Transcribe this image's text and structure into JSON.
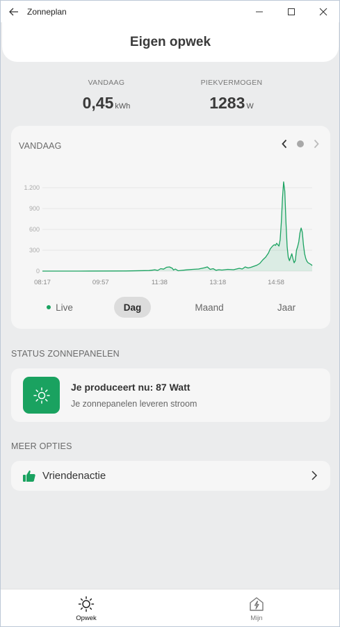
{
  "window": {
    "title": "Zonneplan"
  },
  "header": {
    "title": "Eigen opwek"
  },
  "stats": {
    "today": {
      "label": "VANDAAG",
      "value": "0,45",
      "unit": "kWh"
    },
    "peak": {
      "label": "PIEKVERMOGEN",
      "value": "1283",
      "unit": "W"
    }
  },
  "chart_card": {
    "title": "VANDAAG",
    "tabs": [
      {
        "label": "Live"
      },
      {
        "label": "Dag"
      },
      {
        "label": "Maand"
      },
      {
        "label": "Jaar"
      }
    ],
    "active_tab": "Dag"
  },
  "chart_data": {
    "type": "area",
    "title": "VANDAAG",
    "xlabel": "",
    "ylabel": "",
    "ylim": [
      0,
      1300
    ],
    "y_ticks": [
      0,
      300,
      600,
      900,
      1200
    ],
    "y_tick_labels": [
      "0",
      "300",
      "600",
      "900",
      "1.200"
    ],
    "x_ticks": [
      "08:17",
      "09:57",
      "11:38",
      "13:18",
      "14:58"
    ],
    "x_tick_minutes": [
      497,
      597,
      698,
      798,
      898
    ],
    "xlim_minutes": [
      497,
      960
    ],
    "series": [
      {
        "color": "#1aa260",
        "x_minutes": [
          497,
          560,
          640,
          680,
          690,
          695,
          700,
          705,
          710,
          715,
          720,
          722,
          725,
          730,
          735,
          745,
          755,
          765,
          775,
          780,
          785,
          790,
          795,
          800,
          805,
          815,
          825,
          835,
          840,
          845,
          850,
          855,
          860,
          865,
          870,
          875,
          880,
          885,
          888,
          892,
          895,
          897,
          899,
          901,
          903,
          905,
          907,
          909,
          911,
          913,
          915,
          917,
          919,
          921,
          923,
          925,
          927,
          929,
          931,
          933,
          935,
          937,
          939,
          941,
          943,
          945,
          947,
          949,
          951,
          953,
          955,
          958,
          960
        ],
        "values": [
          0,
          0,
          2,
          8,
          18,
          10,
          35,
          28,
          55,
          60,
          40,
          15,
          30,
          5,
          10,
          18,
          25,
          30,
          48,
          60,
          25,
          35,
          12,
          20,
          15,
          25,
          20,
          40,
          30,
          60,
          45,
          55,
          70,
          85,
          110,
          160,
          200,
          260,
          320,
          360,
          380,
          370,
          400,
          380,
          360,
          450,
          700,
          1050,
          1283,
          1150,
          700,
          350,
          200,
          150,
          200,
          250,
          180,
          120,
          150,
          300,
          350,
          420,
          550,
          620,
          560,
          380,
          250,
          180,
          140,
          120,
          110,
          95,
          80
        ]
      }
    ],
    "grid": true
  },
  "status_section": {
    "label": "STATUS ZONNEPANELEN",
    "title": "Je produceert nu: 87 Watt",
    "subtitle": "Je zonnepanelen leveren stroom",
    "icon": "sun-icon"
  },
  "options_section": {
    "label": "MEER OPTIES",
    "items": [
      {
        "label": "Vriendenactie",
        "icon": "thumbs-up-icon"
      }
    ]
  },
  "bottom_nav": {
    "items": [
      {
        "label": "Opwek",
        "icon": "sun-icon",
        "active": true
      },
      {
        "label": "Mijn",
        "icon": "house-bolt-icon",
        "active": false
      }
    ]
  },
  "colors": {
    "accent": "#1aa260",
    "background": "#ebeced",
    "card": "#f6f6f6"
  }
}
